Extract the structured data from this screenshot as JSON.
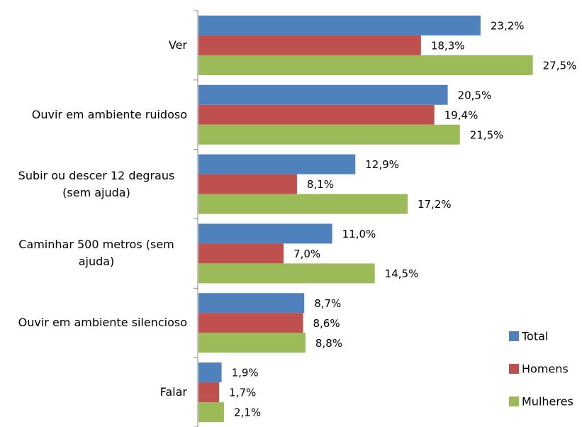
{
  "chart_data": {
    "type": "bar",
    "orientation": "horizontal",
    "categories": [
      "Ver",
      "Ouvir em ambiente ruidoso",
      "Subir ou descer 12 degraus (sem ajuda)",
      "Caminhar 500 metros (sem ajuda)",
      "Ouvir em ambiente silencioso",
      "Falar"
    ],
    "series": [
      {
        "name": "Total",
        "color": "#4f81bd",
        "values": [
          23.2,
          20.5,
          12.9,
          11.0,
          8.7,
          1.9
        ],
        "value_labels": [
          "23,2%",
          "20,5%",
          "12,9%",
          "11,0%",
          "8,7%",
          "1,9%"
        ]
      },
      {
        "name": "Homens",
        "color": "#c0504d",
        "values": [
          18.3,
          19.4,
          8.1,
          7.0,
          8.6,
          1.7
        ],
        "value_labels": [
          "18,3%",
          "19,4%",
          "8,1%",
          "7,0%",
          "8,6%",
          "1,7%"
        ]
      },
      {
        "name": "Mulheres",
        "color": "#9bbb59",
        "values": [
          27.5,
          21.5,
          17.2,
          14.5,
          8.8,
          2.1
        ],
        "value_labels": [
          "27,5%",
          "21,5%",
          "17,2%",
          "14,5%",
          "8,8%",
          "2,1%"
        ]
      }
    ],
    "legend": "lower right"
  }
}
